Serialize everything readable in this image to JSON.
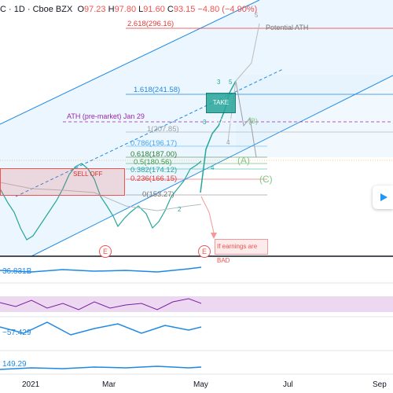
{
  "header": {
    "symbol_suffix": "C",
    "interval": "1D",
    "exchange": "Cboe BZX",
    "open_label": "O",
    "open": "97.23",
    "high_label": "H",
    "high": "97.80",
    "low_label": "L",
    "low": "91.60",
    "close_label": "C",
    "close": "93.15",
    "change": "−4.80 (−4.90%)"
  },
  "fib_levels": [
    {
      "label": "2.618(296.16)",
      "color": "#e53935"
    },
    {
      "label": "1.618(241.58)",
      "color": "#1e88e5"
    },
    {
      "label": "1(207.85)",
      "color": "#9e9e9e"
    },
    {
      "label": "0.786(196.17)",
      "color": "#42a5f5"
    },
    {
      "label": "0.618(187.00)",
      "color": "#2e7d32"
    },
    {
      "label": "0.5(180.56)",
      "color": "#43a047"
    },
    {
      "label": "0.382(174.12)",
      "color": "#26a69a"
    },
    {
      "label": "0.236(166.15)",
      "color": "#e53935"
    },
    {
      "label": "0(153.27)",
      "color": "#757575"
    }
  ],
  "annotations": {
    "potential_ath": "Potential ATH",
    "ath_premarket": "ATH (pre-market) Jan 29",
    "take_profit": "TAKE PROFIT",
    "sell_off": "SELL OFF",
    "earnings_bad": "If earnings are BAD",
    "wave_a": "(A)",
    "wave_c": "(C)",
    "wave_b": "(B)"
  },
  "wave_labels": [
    "1",
    "2",
    "3",
    "4",
    "5",
    "3",
    "4",
    "5"
  ],
  "earnings_markers": [
    "E",
    "E"
  ],
  "indicators": [
    {
      "value": "36.831B",
      "color": "#1e88e5"
    },
    {
      "value": "−57.429",
      "color": "#1e88e5"
    },
    {
      "value": "149.29",
      "color": "#1e88e5"
    }
  ],
  "x_axis": [
    "2021",
    "Mar",
    "May",
    "Jul",
    "Sep"
  ],
  "colors": {
    "up": "#26a69a",
    "down": "#ef5350",
    "channel": "#1e88e5",
    "ath_line": "#9c27b0"
  },
  "nav": {
    "icon": "play-arrow-icon"
  }
}
